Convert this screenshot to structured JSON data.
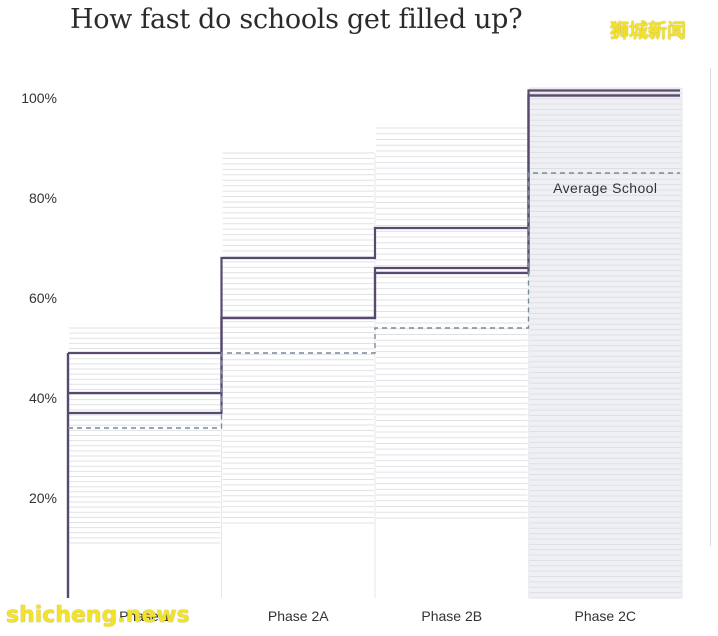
{
  "page": {
    "title": "How fast do schools get filled up?",
    "watermark_top": "狮城新闻",
    "watermark_bottom": "shicheng.news"
  },
  "chart_data": {
    "type": "line",
    "title": "How fast do schools get filled up?",
    "xlabel": "",
    "ylabel": "",
    "categories": [
      "Phase 1",
      "Phase 2A",
      "Phase 2B",
      "Phase 2C"
    ],
    "ylim": [
      0,
      100
    ],
    "yticks": [
      20,
      40,
      60,
      80,
      100
    ],
    "ytick_labels": [
      "20%",
      "40%",
      "60%",
      "80%",
      "100%"
    ],
    "grid": false,
    "colors": {
      "highlight": "#574a6e",
      "average": "#7a8a96",
      "background_lines": "#dcdde2",
      "phase_2c_fill": "#eef0f4"
    },
    "series": [
      {
        "values": [
          49,
          68,
          74,
          100.5
        ]
      },
      {
        "values": [
          41,
          56,
          66,
          100.5
        ]
      },
      {
        "values": [
          37,
          56,
          65,
          101.5
        ]
      },
      {
        "values": [
          34,
          49,
          54,
          85
        ],
        "style": "dashed"
      }
    ],
    "annotations": [
      {
        "text": "Average  School",
        "x": "Phase 2C",
        "y": 82
      }
    ],
    "background_schools": {
      "Phase 1": {
        "min": 11,
        "max": 54
      },
      "Phase 2A": {
        "min": 15,
        "max": 89
      },
      "Phase 2B": {
        "min": 16,
        "max": 94
      },
      "Phase 2C": {
        "min": 0,
        "max": 102
      }
    }
  }
}
